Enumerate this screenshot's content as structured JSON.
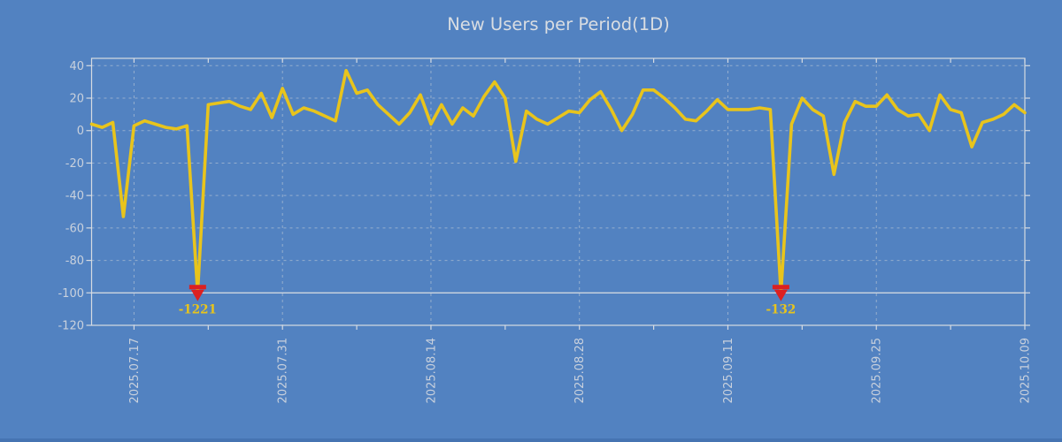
{
  "window": {
    "background_color": "#5282c1",
    "bottom_edge_color": "#4674b2"
  },
  "chart": {
    "title": "New Users per Period(1D)",
    "title_color": "#d9dde2",
    "axis_label_color": "#c9d1dd",
    "grid_color": "#ccd3da",
    "frame_color": "#d6dbe2",
    "line_color": "#e8c41c",
    "marker_color": "#dc2020",
    "annotation_color": "#e8c41c"
  },
  "chart_data": {
    "type": "line",
    "title": "New Users per Period(1D)",
    "xlabel": "",
    "ylabel": "",
    "ylim": [
      -120,
      44
    ],
    "clip_min": -100,
    "grid": "dashed",
    "legend": "none",
    "yticks": [
      40,
      20,
      0,
      -20,
      -40,
      -60,
      -80,
      -100,
      -120
    ],
    "xticks": [
      "2025.07.17",
      "2025.07.31",
      "2025.08.14",
      "2025.08.28",
      "2025.09.11",
      "2025.09.25",
      "2025.10.09"
    ],
    "x": [
      "2025.07.13",
      "2025.07.14",
      "2025.07.15",
      "2025.07.16",
      "2025.07.17",
      "2025.07.18",
      "2025.07.19",
      "2025.07.20",
      "2025.07.21",
      "2025.07.22",
      "2025.07.23",
      "2025.07.24",
      "2025.07.25",
      "2025.07.26",
      "2025.07.27",
      "2025.07.28",
      "2025.07.29",
      "2025.07.30",
      "2025.07.31",
      "2025.08.01",
      "2025.08.02",
      "2025.08.03",
      "2025.08.04",
      "2025.08.05",
      "2025.08.06",
      "2025.08.07",
      "2025.08.08",
      "2025.08.09",
      "2025.08.10",
      "2025.08.11",
      "2025.08.12",
      "2025.08.13",
      "2025.08.14",
      "2025.08.15",
      "2025.08.16",
      "2025.08.17",
      "2025.08.18",
      "2025.08.19",
      "2025.08.20",
      "2025.08.21",
      "2025.08.22",
      "2025.08.23",
      "2025.08.24",
      "2025.08.25",
      "2025.08.26",
      "2025.08.27",
      "2025.08.28",
      "2025.08.29",
      "2025.08.30",
      "2025.08.31",
      "2025.09.01",
      "2025.09.02",
      "2025.09.03",
      "2025.09.04",
      "2025.09.05",
      "2025.09.06",
      "2025.09.07",
      "2025.09.08",
      "2025.09.09",
      "2025.09.10",
      "2025.09.11",
      "2025.09.12",
      "2025.09.13",
      "2025.09.14",
      "2025.09.15",
      "2025.09.16",
      "2025.09.17",
      "2025.09.18",
      "2025.09.19",
      "2025.09.20",
      "2025.09.21",
      "2025.09.22",
      "2025.09.23",
      "2025.09.24",
      "2025.09.25",
      "2025.09.26",
      "2025.09.27",
      "2025.09.28",
      "2025.09.29",
      "2025.09.30",
      "2025.10.01",
      "2025.10.02",
      "2025.10.03",
      "2025.10.04",
      "2025.10.05",
      "2025.10.06",
      "2025.10.07",
      "2025.10.08",
      "2025.10.09"
    ],
    "values": [
      4,
      2,
      5,
      -53,
      3,
      6,
      4,
      2,
      1,
      3,
      -1221,
      16,
      17,
      18,
      15,
      13,
      23,
      8,
      26,
      10,
      14,
      12,
      9,
      6,
      37,
      23,
      25,
      16,
      10,
      4,
      11,
      22,
      4,
      16,
      4,
      14,
      9,
      21,
      30,
      20,
      -19,
      12,
      7,
      4,
      8,
      12,
      11,
      19,
      24,
      13,
      0,
      10,
      25,
      25,
      20,
      14,
      7,
      6,
      12,
      19,
      13,
      13,
      13,
      14,
      13,
      -132,
      4,
      20,
      13,
      9,
      -27,
      5,
      18,
      15,
      15,
      22,
      13,
      9,
      10,
      0,
      22,
      13,
      11,
      -10,
      5,
      7,
      10,
      16,
      11
    ],
    "annotations": [
      {
        "date": "2025.07.23",
        "label": "-1221",
        "value": -1221
      },
      {
        "date": "2025.09.16",
        "label": "-132",
        "value": -132
      }
    ]
  }
}
